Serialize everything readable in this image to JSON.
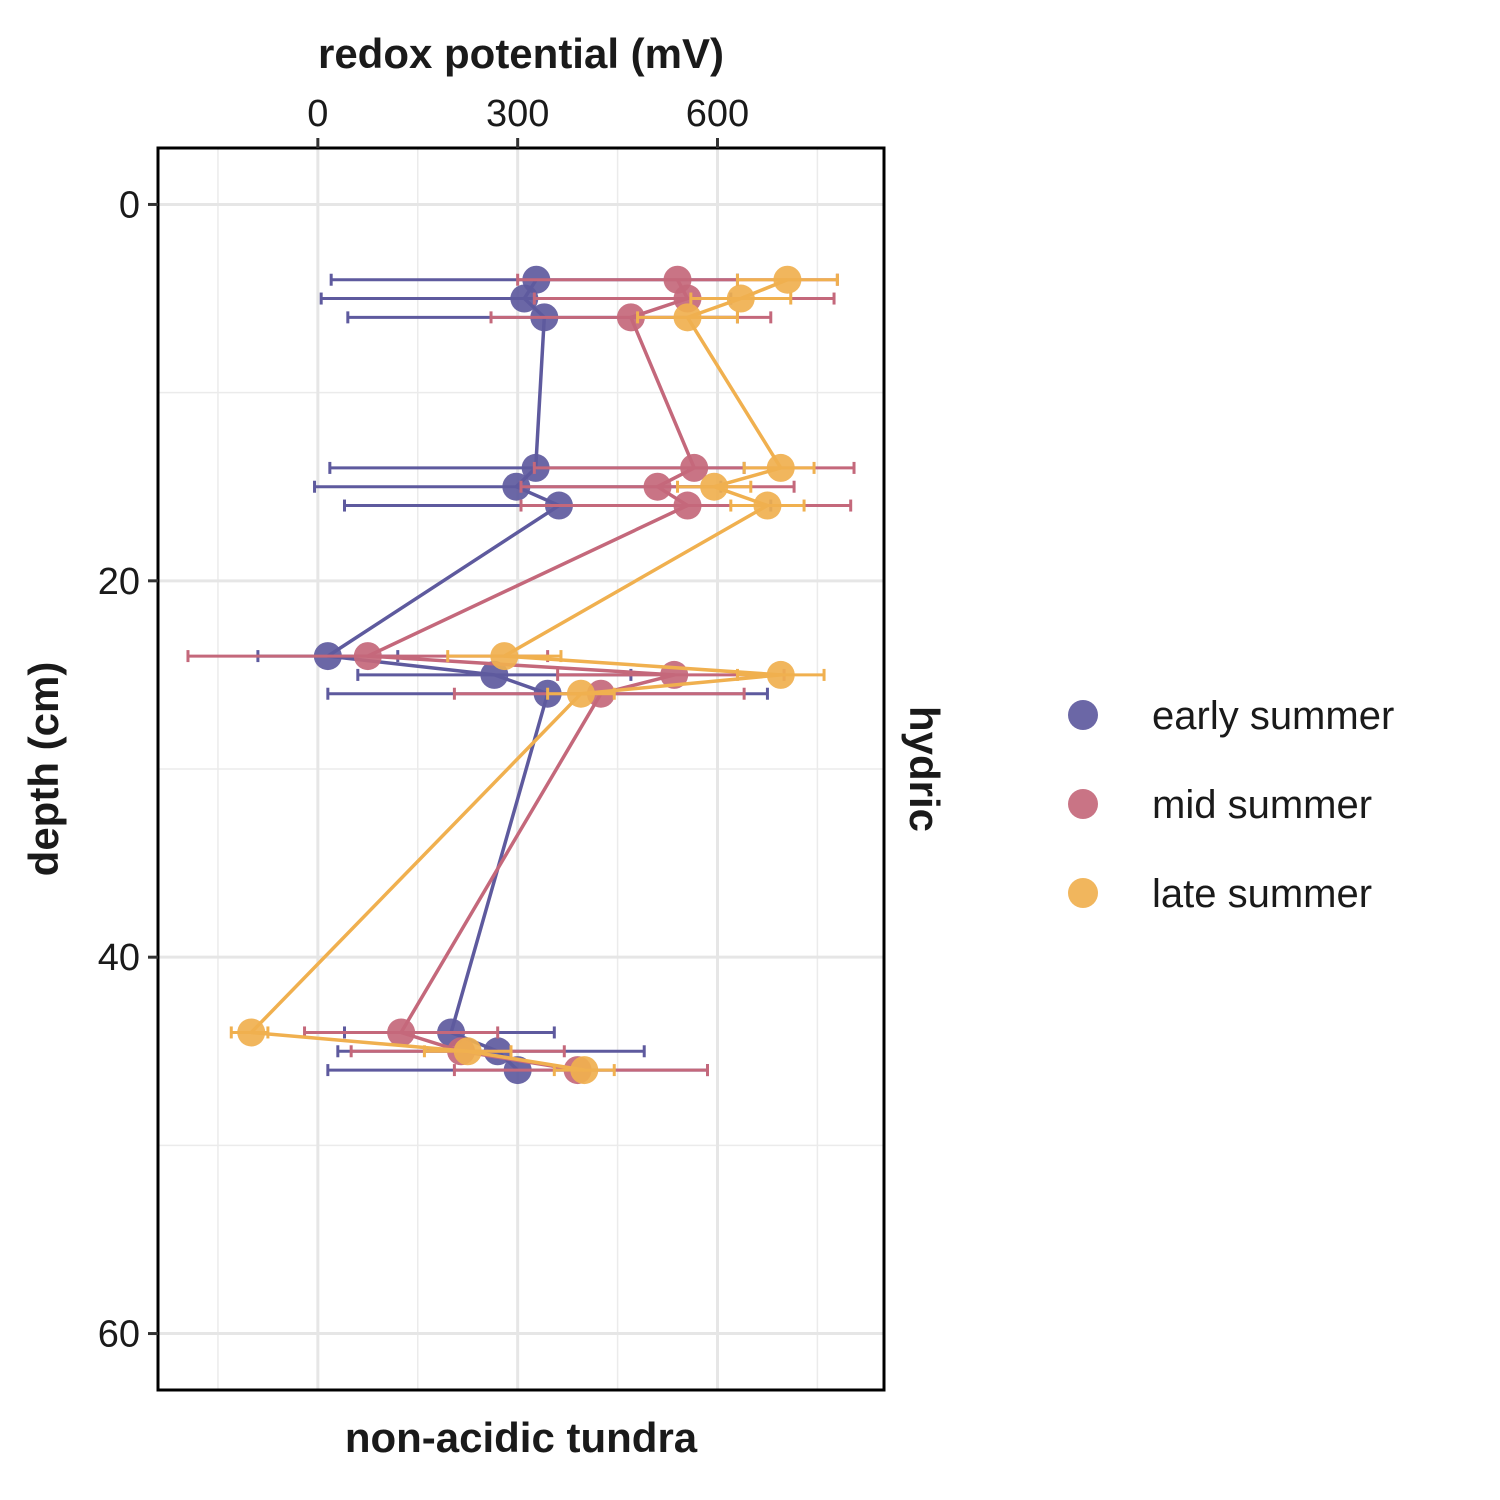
{
  "chart_data": {
    "type": "line",
    "xlabel": "redox potential (mV)",
    "ylabel": "depth (cm)",
    "facet_bottom": "non-acidic tundra",
    "facet_right": "hydric",
    "xlim": [
      -240,
      850
    ],
    "ylim": [
      -3,
      63
    ],
    "x_ticks": [
      0,
      300,
      600
    ],
    "y_ticks": [
      0,
      20,
      40,
      60
    ],
    "y_reversed": true,
    "x_axis_position": "top",
    "grid": true,
    "legend_position": "right",
    "series": [
      {
        "name": "early summer",
        "color": "#5e5a9e",
        "points": [
          {
            "x": 328,
            "y": 4,
            "lo": 20,
            "hi": 630
          },
          {
            "x": 310,
            "y": 5,
            "lo": 5,
            "hi": 620
          },
          {
            "x": 340,
            "y": 6,
            "lo": 45,
            "hi": 630
          },
          {
            "x": 327,
            "y": 14,
            "lo": 18,
            "hi": 640
          },
          {
            "x": 298,
            "y": 15,
            "lo": -5,
            "hi": 605
          },
          {
            "x": 362,
            "y": 16,
            "lo": 40,
            "hi": 680
          },
          {
            "x": 15,
            "y": 24,
            "lo": -90,
            "hi": 120
          },
          {
            "x": 265,
            "y": 25,
            "lo": 60,
            "hi": 470
          },
          {
            "x": 345,
            "y": 26,
            "lo": 15,
            "hi": 675
          },
          {
            "x": 200,
            "y": 44,
            "lo": 40,
            "hi": 355
          },
          {
            "x": 270,
            "y": 45,
            "lo": 30,
            "hi": 490
          },
          {
            "x": 300,
            "y": 46,
            "lo": 15,
            "hi": 585
          }
        ]
      },
      {
        "name": "mid summer",
        "color": "#c4687b",
        "points": [
          {
            "x": 540,
            "y": 4,
            "lo": 300,
            "hi": 780
          },
          {
            "x": 555,
            "y": 5,
            "lo": 325,
            "hi": 775
          },
          {
            "x": 470,
            "y": 6,
            "lo": 260,
            "hi": 680
          },
          {
            "x": 565,
            "y": 14,
            "lo": 325,
            "hi": 805
          },
          {
            "x": 510,
            "y": 15,
            "lo": 305,
            "hi": 715
          },
          {
            "x": 555,
            "y": 16,
            "lo": 305,
            "hi": 800
          },
          {
            "x": 75,
            "y": 24,
            "lo": -195,
            "hi": 345
          },
          {
            "x": 535,
            "y": 25,
            "lo": 360,
            "hi": 700
          },
          {
            "x": 425,
            "y": 26,
            "lo": 205,
            "hi": 640
          },
          {
            "x": 125,
            "y": 44,
            "lo": -20,
            "hi": 270
          },
          {
            "x": 215,
            "y": 45,
            "lo": 50,
            "hi": 370
          },
          {
            "x": 390,
            "y": 46,
            "lo": 205,
            "hi": 585
          }
        ]
      },
      {
        "name": "late summer",
        "color": "#f0b04f",
        "points": [
          {
            "x": 705,
            "y": 4,
            "lo": 630,
            "hi": 780
          },
          {
            "x": 635,
            "y": 5,
            "lo": 560,
            "hi": 710
          },
          {
            "x": 555,
            "y": 6,
            "lo": 480,
            "hi": 630
          },
          {
            "x": 695,
            "y": 14,
            "lo": 640,
            "hi": 745
          },
          {
            "x": 595,
            "y": 15,
            "lo": 540,
            "hi": 650
          },
          {
            "x": 675,
            "y": 16,
            "lo": 620,
            "hi": 730
          },
          {
            "x": 280,
            "y": 24,
            "lo": 195,
            "hi": 365
          },
          {
            "x": 695,
            "y": 25,
            "lo": 630,
            "hi": 760
          },
          {
            "x": 395,
            "y": 26,
            "lo": 345,
            "hi": 445
          },
          {
            "x": -100,
            "y": 44,
            "lo": -130,
            "hi": -75
          },
          {
            "x": 225,
            "y": 45,
            "lo": 160,
            "hi": 290
          },
          {
            "x": 400,
            "y": 46,
            "lo": 355,
            "hi": 445
          }
        ]
      }
    ]
  }
}
